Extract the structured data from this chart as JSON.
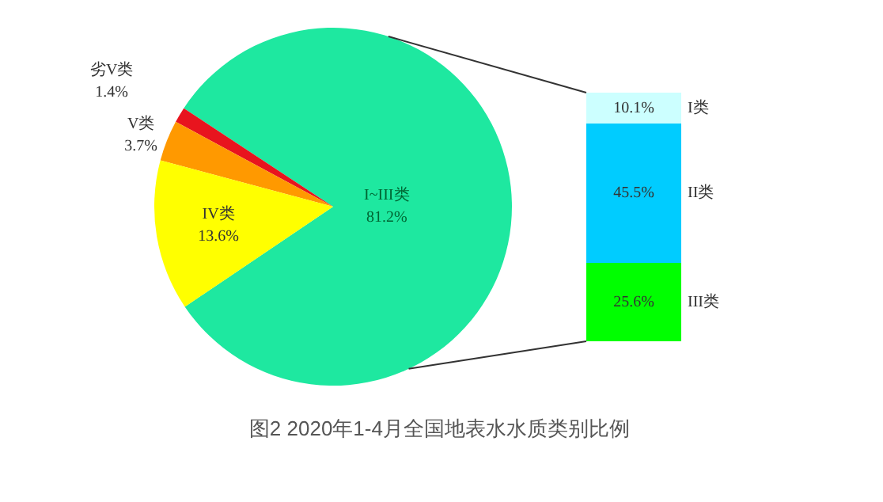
{
  "chart_data": [
    {
      "type": "pie",
      "title": "图2  2020年1-4月全国地表水水质类别比例",
      "categories": [
        "I~III类",
        "劣V类",
        "V类",
        "IV类"
      ],
      "values": [
        81.2,
        1.4,
        3.7,
        13.6
      ],
      "colors": [
        "#1ee8a0",
        "#e8141e",
        "#ff9900",
        "#ffff00"
      ],
      "value_labels": [
        "81.2%",
        "1.4%",
        "3.7%",
        "13.6%"
      ]
    },
    {
      "type": "bar",
      "stacked": true,
      "categories": [
        null
      ],
      "series": [
        {
          "name": "III类",
          "color": "#00ff00",
          "values": [
            25.6
          ],
          "value_labels": [
            "25.6%"
          ]
        },
        {
          "name": "II类",
          "color": "#00ccff",
          "values": [
            45.5
          ],
          "value_labels": [
            "45.5%"
          ]
        },
        {
          "name": "I类",
          "color": "#ccffff",
          "values": [
            10.1
          ],
          "value_labels": [
            "10.1%"
          ]
        }
      ]
    }
  ]
}
